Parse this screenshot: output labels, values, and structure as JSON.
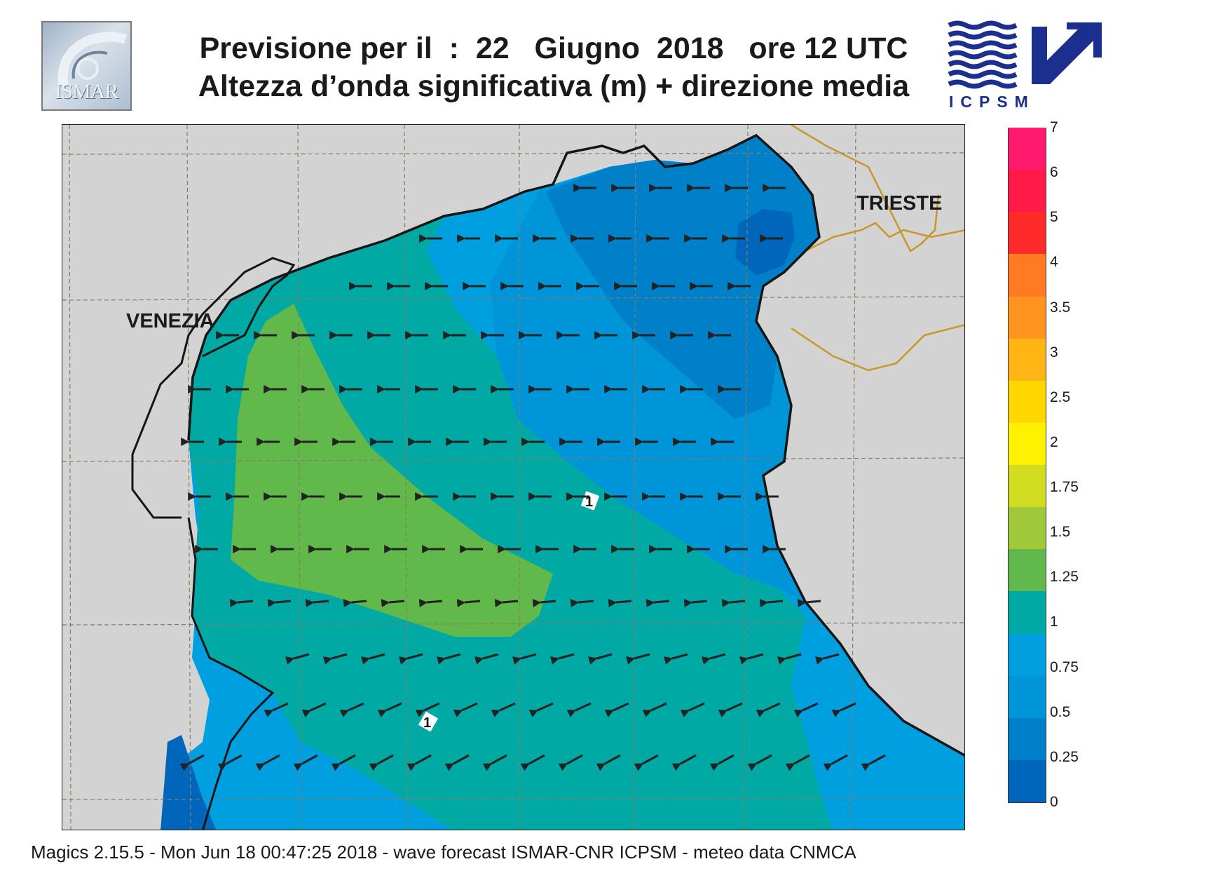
{
  "logos": {
    "left": {
      "text": "ISMAR"
    },
    "right": {
      "text": "ICPSM"
    }
  },
  "header": {
    "line1": "Previsione per il  :  22   Giugno  2018   ore 12 UTC",
    "line2": "Altezza d’onda significativa (m) + direzione media"
  },
  "map": {
    "cities": [
      {
        "name": "VENEZIA"
      },
      {
        "name": "TRIESTE"
      }
    ],
    "contour_labels": [
      "1",
      "1"
    ],
    "colors": {
      "land": "#d3d3d3",
      "coast": "#151515",
      "border": "#c8962a",
      "grid": "#8a7c62",
      "arrow": "#222222"
    },
    "wave_direction": "west (arrows point toward the Italian coast)"
  },
  "legend": {
    "labels": [
      "7",
      "6",
      "5",
      "4",
      "3.5",
      "3",
      "2.5",
      "2",
      "1.75",
      "1.5",
      "1.25",
      "1",
      "0.75",
      "0.5",
      "0.25",
      "0"
    ],
    "colors": [
      "#0066bb",
      "#0080c8",
      "#0095d8",
      "#009fe0",
      "#00a9a4",
      "#61b84b",
      "#9fc93a",
      "#d2dc22",
      "#fff200",
      "#ffd700",
      "#ffb514",
      "#ff951e",
      "#ff7a22",
      "#ff2a2a",
      "#ff1a4a",
      "#ff1a6e"
    ]
  },
  "footer": {
    "text": "Magics 2.15.5 - Mon Jun 18 00:47:25 2018 - wave forecast  ISMAR-CNR  ICPSM - meteo data   CNMCA"
  }
}
